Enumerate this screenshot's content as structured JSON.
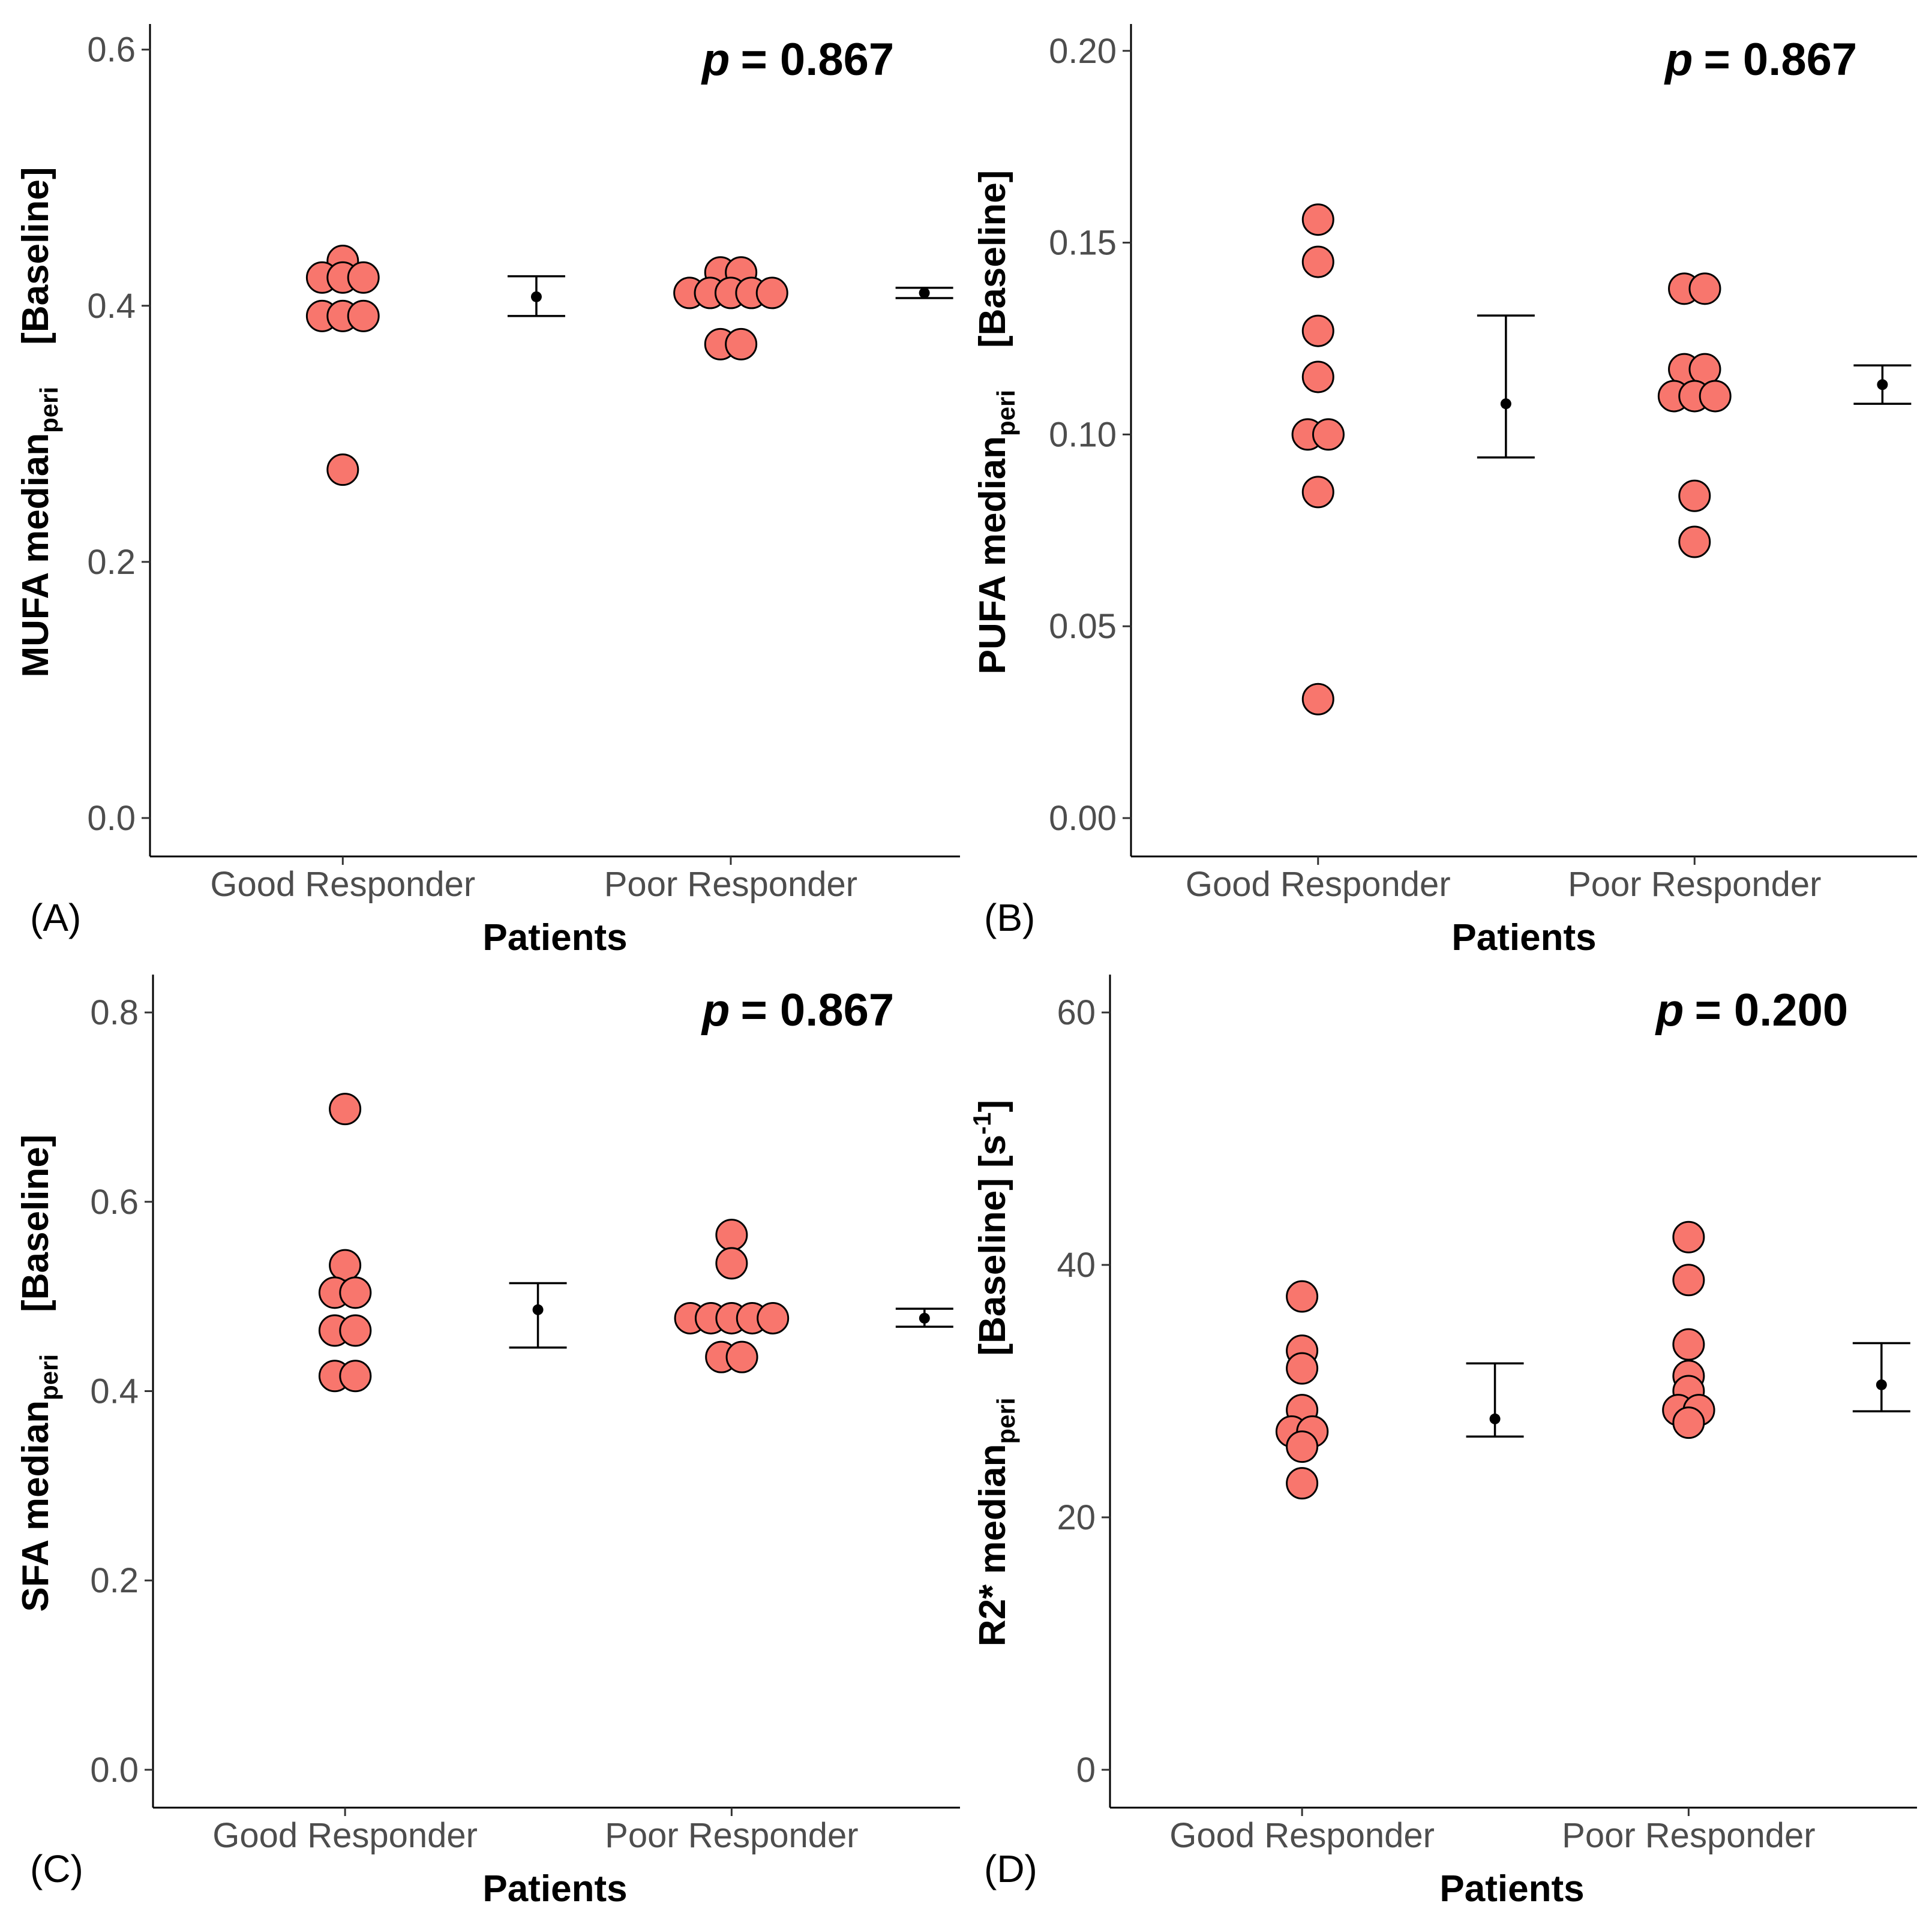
{
  "figure": {
    "point_fill": "#F8766D",
    "point_stroke": "#000000",
    "summary_color": "#000000"
  },
  "chart_data": [
    {
      "type": "scatter",
      "panel": "(A)",
      "title": "",
      "xlabel": "Patients",
      "ylabel": {
        "main": "MUFA median",
        "sub": "peri",
        "suffix": "[Baseline]",
        "sup": ""
      },
      "p_label": "p",
      "p_value": "= 0.867",
      "categories": [
        "Good Responder",
        "Poor Responder"
      ],
      "ylim": [
        -0.03,
        0.62
      ],
      "yticks": [
        0.0,
        0.2,
        0.4,
        0.6
      ],
      "ytick_labels": [
        "0.0",
        "0.2",
        "0.4",
        "0.6"
      ],
      "grid": false,
      "series": [
        {
          "name": "Good Responder",
          "values": [
            0.435,
            0.422,
            0.422,
            0.422,
            0.392,
            0.392,
            0.392,
            0.272
          ],
          "offsets": [
            0,
            -0.86,
            0,
            0.86,
            -0.86,
            0,
            0.86,
            0
          ],
          "summary": {
            "mean": 0.407,
            "lower": 0.392,
            "upper": 0.423
          }
        },
        {
          "name": "Poor Responder",
          "values": [
            0.426,
            0.426,
            0.41,
            0.41,
            0.41,
            0.41,
            0.41,
            0.37,
            0.37
          ],
          "offsets": [
            -0.43,
            0.43,
            -1.72,
            -0.86,
            0,
            0.86,
            1.72,
            -0.43,
            0.43
          ],
          "summary": {
            "mean": 0.41,
            "lower": 0.406,
            "upper": 0.414
          }
        }
      ]
    },
    {
      "type": "scatter",
      "panel": "(B)",
      "title": "",
      "xlabel": "Patients",
      "ylabel": {
        "main": "PUFA median",
        "sub": "peri",
        "suffix": "[Baseline]",
        "sup": ""
      },
      "p_label": "p",
      "p_value": "= 0.867",
      "categories": [
        "Good Responder",
        "Poor Responder"
      ],
      "ylim": [
        -0.01,
        0.207
      ],
      "yticks": [
        0.0,
        0.05,
        0.1,
        0.15,
        0.2
      ],
      "ytick_labels": [
        "0.00",
        "0.05",
        "0.10",
        "0.15",
        "0.20"
      ],
      "grid": false,
      "series": [
        {
          "name": "Good Responder",
          "values": [
            0.156,
            0.145,
            0.127,
            0.115,
            0.1,
            0.1,
            0.085,
            0.031
          ],
          "offsets": [
            0,
            0,
            0,
            0,
            -0.43,
            0.43,
            0,
            0
          ],
          "summary": {
            "mean": 0.108,
            "lower": 0.094,
            "upper": 0.131
          }
        },
        {
          "name": "Poor Responder",
          "values": [
            0.138,
            0.138,
            0.117,
            0.117,
            0.11,
            0.11,
            0.11,
            0.084,
            0.072
          ],
          "offsets": [
            -0.43,
            0.43,
            -0.43,
            0.43,
            -0.86,
            0,
            0.86,
            0,
            0
          ],
          "summary": {
            "mean": 0.113,
            "lower": 0.108,
            "upper": 0.118
          }
        }
      ]
    },
    {
      "type": "scatter",
      "panel": "(C)",
      "title": "",
      "xlabel": "Patients",
      "ylabel": {
        "main": "SFA median",
        "sub": "peri",
        "suffix": "[Baseline]",
        "sup": ""
      },
      "p_label": "p",
      "p_value": "= 0.867",
      "categories": [
        "Good Responder",
        "Poor Responder"
      ],
      "ylim": [
        -0.04,
        0.84
      ],
      "yticks": [
        0.0,
        0.2,
        0.4,
        0.6,
        0.8
      ],
      "ytick_labels": [
        "0.0",
        "0.2",
        "0.4",
        "0.6",
        "0.8"
      ],
      "grid": false,
      "series": [
        {
          "name": "Good Responder",
          "values": [
            0.698,
            0.533,
            0.504,
            0.504,
            0.464,
            0.464,
            0.416,
            0.416
          ],
          "offsets": [
            0,
            0,
            -0.43,
            0.43,
            -0.43,
            0.43,
            -0.43,
            0.43
          ],
          "summary": {
            "mean": 0.486,
            "lower": 0.446,
            "upper": 0.514
          }
        },
        {
          "name": "Poor Responder",
          "values": [
            0.565,
            0.535,
            0.477,
            0.477,
            0.477,
            0.477,
            0.477,
            0.436,
            0.436
          ],
          "offsets": [
            0,
            0,
            -1.72,
            -0.86,
            0,
            0.86,
            1.72,
            -0.43,
            0.43
          ],
          "summary": {
            "mean": 0.477,
            "lower": 0.468,
            "upper": 0.487
          }
        }
      ]
    },
    {
      "type": "scatter",
      "panel": "(D)",
      "title": "",
      "xlabel": "Patients",
      "ylabel": {
        "main": "R2* median",
        "sub": "peri",
        "suffix": "[Baseline]   [s",
        "sup": "-1",
        "close": "]"
      },
      "p_label": "p",
      "p_value": "= 0.200",
      "categories": [
        "Good Responder",
        "Poor Responder"
      ],
      "ylim": [
        -3,
        63
      ],
      "yticks": [
        0,
        20,
        40,
        60
      ],
      "ytick_labels": [
        "0",
        "20",
        "40",
        "60"
      ],
      "grid": false,
      "series": [
        {
          "name": "Good Responder",
          "values": [
            37.5,
            33.2,
            31.8,
            28.5,
            26.8,
            26.8,
            25.6,
            22.7
          ],
          "offsets": [
            0,
            0,
            0,
            0,
            -0.43,
            0.43,
            0,
            0
          ],
          "summary": {
            "mean": 27.8,
            "lower": 26.4,
            "upper": 32.2
          }
        },
        {
          "name": "Poor Responder",
          "values": [
            42.2,
            38.8,
            33.7,
            31.2,
            30.0,
            28.5,
            28.5,
            27.5
          ],
          "offsets": [
            0,
            0,
            0,
            0,
            0,
            -0.43,
            0.43,
            0
          ],
          "summary": {
            "mean": 30.5,
            "lower": 28.4,
            "upper": 33.8
          }
        }
      ]
    }
  ]
}
